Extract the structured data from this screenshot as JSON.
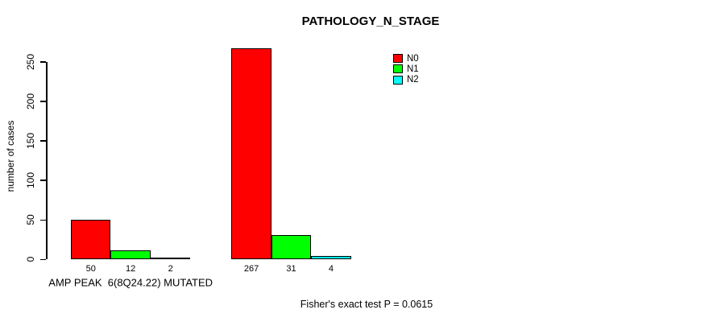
{
  "title": "PATHOLOGY_N_STAGE",
  "y_axis": {
    "label": "number of cases"
  },
  "legend": {
    "position": "top-right",
    "items": [
      {
        "label": "N0",
        "color": "#FF0000"
      },
      {
        "label": "N1",
        "color": "#00FF00"
      },
      {
        "label": "N2",
        "color": "#00FFFF"
      }
    ]
  },
  "footer": {
    "stat_text": "Fisher's exact test P = 0.0615"
  },
  "chart_data": {
    "type": "bar",
    "title": "PATHOLOGY_N_STAGE",
    "xlabel": "",
    "ylabel": "number of cases",
    "ylim": [
      0,
      250
    ],
    "yticks": [
      0,
      50,
      100,
      150,
      200,
      250
    ],
    "grid": false,
    "legend_position": "top-right",
    "bar_value_labels_shown": true,
    "series": [
      "N0",
      "N1",
      "N2"
    ],
    "colors": [
      "#FF0000",
      "#00FF00",
      "#00FFFF"
    ],
    "groups": [
      {
        "label": "AMP PEAK  6(8Q24.22) MUTATED",
        "values": [
          50,
          12,
          2
        ]
      },
      {
        "label": "",
        "values": [
          267,
          31,
          4
        ]
      }
    ],
    "annotation": "Fisher's exact test P = 0.0615"
  }
}
